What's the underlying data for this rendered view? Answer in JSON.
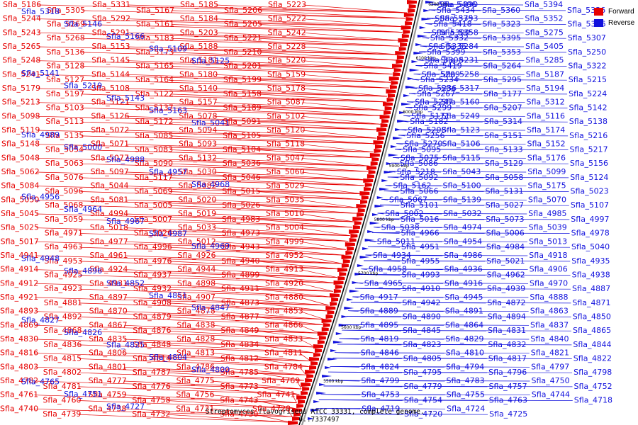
{
  "colors": {
    "forward": "#e60000",
    "reverse": "#1111dd",
    "backbone": "#000000"
  },
  "legend": [
    {
      "label": "Forward",
      "color": "#e60000"
    },
    {
      "label": "Reverse",
      "color": "#1111dd"
    }
  ],
  "caption": "Streptomyces flavogriseus ATCC 33331, complete genome. - 0..7337497",
  "ticks": [
    "5500 kbp",
    "5600 kbp",
    "5700 kbp",
    "5800 kbp",
    "5900 kbp",
    "6000 kbp",
    "6100 kbp",
    "6200 kbp"
  ],
  "forward_labels": [
    "Sfla_5186",
    "Sfla_5305",
    "Sfla_5331",
    "Sfla_5167",
    "Sfla_5185",
    "Sfla_5206",
    "Sfla_5223",
    "Sfla_5244",
    "Sfla_5269",
    "Sfla_5292",
    "Sfla_5161",
    "Sfla_5184",
    "Sfla_5205",
    "Sfla_5222",
    "Sfla_5243",
    "Sfla_5268",
    "Sfla_5291",
    "Sfla_5183",
    "Sfla_5203",
    "Sfla_5221",
    "Sfla_5242",
    "Sfla_5265",
    "Sfla_5136",
    "Sfla_5153",
    "Sfla_5173",
    "Sfla_5188",
    "Sfla_5210",
    "Sfla_5228",
    "Sfla_5248",
    "Sfla_5128",
    "Sfla_5145",
    "Sfla_5165",
    "Sfla_5181",
    "Sfla_5201",
    "Sfla_5220",
    "Sfla_5241",
    "Sfla_5127",
    "Sfla_5144",
    "Sfla_5164",
    "Sfla_5180",
    "Sfla_5199",
    "Sfla_5159",
    "Sfla_5179",
    "Sfla_5197",
    "Sfla_5108",
    "Sfla_5122",
    "Sfla_5140",
    "Sfla_5158",
    "Sfla_5178",
    "Sfla_5213",
    "Sfla_5103",
    "Sfla_5121",
    "Sfla_5137",
    "Sfla_5157",
    "Sfla_5189",
    "Sfla_5087",
    "Sfla_5098",
    "Sfla_5113",
    "Sfla_5126",
    "Sfla_5172",
    "Sfla_5078",
    "Sfla_5091",
    "Sfla_5102",
    "Sfla_5119",
    "Sfla_5135",
    "Sfla_5072",
    "Sfla_5085",
    "Sfla_5094",
    "Sfla_5105",
    "Sfla_5120",
    "Sfla_5148",
    "Sfla_5054",
    "Sfla_5071",
    "Sfla_5083",
    "Sfla_5093",
    "Sfla_5104",
    "Sfla_5118",
    "Sfla_5048",
    "Sfla_5063",
    "Sfla_5077",
    "Sfla_5090",
    "Sfla_5132",
    "Sfla_5036",
    "Sfla_5047",
    "Sfla_5062",
    "Sfla_5076",
    "Sfla_5097",
    "Sfla_5117",
    "Sfla_5030",
    "Sfla_5046",
    "Sfla_5060",
    "Sfla_5084",
    "Sfla_5096",
    "Sfla_5044",
    "Sfla_5069",
    "Sfla_5082",
    "Sfla_5015",
    "Sfla_5029",
    "Sfla_5050",
    "Sfla_5068",
    "Sfla_5081",
    "Sfla_5005",
    "Sfla_5020",
    "Sfla_5026",
    "Sfla_5035",
    "Sfla_5045",
    "Sfla_5059",
    "Sfla_4994",
    "Sfla_5007",
    "Sfla_5019",
    "Sfla_4983",
    "Sfla_5010",
    "Sfla_5025",
    "Sfla_4971",
    "Sfla_5018",
    "Sfla_5026",
    "Sfla_5033",
    "Sfla_4973",
    "Sfla_5004",
    "Sfla_5017",
    "Sfla_4963",
    "Sfla_4977",
    "Sfla_4996",
    "Sfla_5012",
    "Sfla_4943",
    "Sfla_4999",
    "Sfla_4941",
    "Sfla_4953",
    "Sfla_4961",
    "Sfla_4976",
    "Sfla_4926",
    "Sfla_4940",
    "Sfla_4952",
    "Sfla_4914",
    "Sfla_4925",
    "Sfla_4924",
    "Sfla_4937",
    "Sfla_4944",
    "Sfla_4899",
    "Sfla_4913",
    "Sfla_4912",
    "Sfla_4923",
    "Sfla_4931",
    "Sfla_4932",
    "Sfla_4898",
    "Sfla_4911",
    "Sfla_4920",
    "Sfla_4921",
    "Sfla_4881",
    "Sfla_4897",
    "Sfla_4908",
    "Sfla_4907",
    "Sfla_4873",
    "Sfla_4880",
    "Sfla_4893",
    "Sfla_4892",
    "Sfla_4870",
    "Sfla_4879",
    "Sfla_4878",
    "Sfla_4877",
    "Sfla_4853",
    "Sfla_4869",
    "Sfla_4868",
    "Sfla_4867",
    "Sfla_4876",
    "Sfla_4838",
    "Sfla_4849",
    "Sfla_4866",
    "Sfla_4830",
    "Sfla_4836",
    "Sfla_4835",
    "Sfla_4848",
    "Sfla_4828",
    "Sfla_4834",
    "Sfla_4833",
    "Sfla_4816",
    "Sfla_4815",
    "Sfla_4806",
    "Sfla_4814",
    "Sfla_4813",
    "Sfla_4812",
    "Sfla_4811",
    "Sfla_4803",
    "Sfla_4802",
    "Sfla_4801",
    "Sfla_4787",
    "Sfla_4786",
    "Sfla_4785",
    "Sfla_4784",
    "Sfla_4782",
    "Sfla_4781",
    "Sfla_4777",
    "Sfla_4776",
    "Sfla_4775",
    "Sfla_4773",
    "Sfla_4769",
    "Sfla_4761",
    "Sfla_4760",
    "Sfla_4759",
    "Sfla_4758",
    "Sfla_4756",
    "Sfla_4743",
    "Sfla_4741",
    "Sfla_4740",
    "Sfla_4739",
    "Sfla_4738",
    "Sfla_4732",
    "Sfla_4731",
    "Sfla_4730",
    "Sfla_4728"
  ],
  "forward_blue_labels": [
    "Sfla_5318",
    "Sfla_5146",
    "Sfla_5166",
    "Sfla_5109",
    "Sfla_5125",
    "Sfla_5141",
    "Sfla_5219",
    "Sfla_5143",
    "Sfla_5163",
    "Sfla_5041",
    "Sfla_4989",
    "Sfla_5000",
    "Sfla_4988",
    "Sfla_4957",
    "Sfla_4968",
    "Sfla_4956",
    "Sfla_4964",
    "Sfla_4967",
    "Sfla_4987",
    "Sfla_4969",
    "Sfla_4948",
    "Sfla_4896",
    "Sfla_4852",
    "Sfla_4851",
    "Sfla_4847",
    "Sfla_4827",
    "Sfla_4826",
    "Sfla_4825",
    "Sfla_4804",
    "Sfla_4800",
    "Sfla_4765",
    "Sfla_4751",
    "Sfla_4727"
  ],
  "reverse_labels": [
    "Sfla_5406",
    "Sfla_5434",
    "Sfla_5390",
    "Sfla_5360",
    "Sfla_5394",
    "Sfla_5336",
    "Sfla_5375",
    "Sfla_5418",
    "Sfla_5393",
    "Sfla_5323",
    "Sfla_5352",
    "Sfla_5396",
    "Sfla_5300",
    "Sfla_5332",
    "Sfla_5358",
    "Sfla_5395",
    "Sfla_5275",
    "Sfla_5307",
    "Sfla_5335",
    "Sfla_5399",
    "Sfla_5284",
    "Sfla_5353",
    "Sfla_5405",
    "Sfla_5250",
    "Sfla_5308",
    "Sfla_5419",
    "Sfla_5231",
    "Sfla_5264",
    "Sfla_5285",
    "Sfla_5322",
    "Sfla_5209",
    "Sfla_5234",
    "Sfla_5258",
    "Sfla_5295",
    "Sfla_5187",
    "Sfla_5215",
    "Sfla_5236",
    "Sfla_5267",
    "Sfla_5317",
    "Sfla_5177",
    "Sfla_5194",
    "Sfla_5224",
    "Sfla_5247",
    "Sfla_5299",
    "Sfla_5160",
    "Sfla_5207",
    "Sfla_5312",
    "Sfla_5142",
    "Sfla_5171",
    "Sfla_5182",
    "Sfla_5249",
    "Sfla_5314",
    "Sfla_5116",
    "Sfla_5138",
    "Sfla_5208",
    "Sfla_5256",
    "Sfla_5123",
    "Sfla_5151",
    "Sfla_5174",
    "Sfla_5216",
    "Sfla_5270",
    "Sfla_5095",
    "Sfla_5106",
    "Sfla_5133",
    "Sfla_5152",
    "Sfla_5217",
    "Sfla_5075",
    "Sfla_5086",
    "Sfla_5115",
    "Sfla_5129",
    "Sfla_5176",
    "Sfla_5156",
    "Sfla_5218",
    "Sfla_5092",
    "Sfla_5043",
    "Sfla_5058",
    "Sfla_5099",
    "Sfla_5124",
    "Sfla_5162",
    "Sfla_5066",
    "Sfla_5100",
    "Sfla_5131",
    "Sfla_5175",
    "Sfla_5023",
    "Sfla_5067",
    "Sfla_5101",
    "Sfla_5139",
    "Sfla_5027",
    "Sfla_5070",
    "Sfla_5107",
    "Sfla_5002",
    "Sfla_5016",
    "Sfla_5032",
    "Sfla_5073",
    "Sfla_4985",
    "Sfla_4997",
    "Sfla_5038",
    "Sfla_4966",
    "Sfla_4974",
    "Sfla_5006",
    "Sfla_5039",
    "Sfla_4978",
    "Sfla_5011",
    "Sfla_4951",
    "Sfla_4954",
    "Sfla_4984",
    "Sfla_5013",
    "Sfla_5040",
    "Sfla_4934",
    "Sfla_4955",
    "Sfla_4986",
    "Sfla_5021",
    "Sfla_4918",
    "Sfla_4935",
    "Sfla_4958",
    "Sfla_4993",
    "Sfla_4936",
    "Sfla_4962",
    "Sfla_4906",
    "Sfla_4938",
    "Sfla_4965",
    "Sfla_4910",
    "Sfla_4916",
    "Sfla_4939",
    "Sfla_4970",
    "Sfla_4887",
    "Sfla_4917",
    "Sfla_4942",
    "Sfla_4945",
    "Sfla_4872",
    "Sfla_4888",
    "Sfla_4871",
    "Sfla_4889",
    "Sfla_4890",
    "Sfla_4891",
    "Sfla_4894",
    "Sfla_4863",
    "Sfla_4850",
    "Sfla_4895",
    "Sfla_4845",
    "Sfla_4864",
    "Sfla_4831",
    "Sfla_4837",
    "Sfla_4865",
    "Sfla_4819",
    "Sfla_4823",
    "Sfla_4829",
    "Sfla_4832",
    "Sfla_4840",
    "Sfla_4844",
    "Sfla_4846",
    "Sfla_4805",
    "Sfla_4810",
    "Sfla_4817",
    "Sfla_4821",
    "Sfla_4822",
    "Sfla_4824",
    "Sfla_4795",
    "Sfla_4794",
    "Sfla_4796",
    "Sfla_4797",
    "Sfla_4798",
    "Sfla_4799",
    "Sfla_4779",
    "Sfla_4783",
    "Sfla_4757",
    "Sfla_4750",
    "Sfla_4752",
    "Sfla_4753",
    "Sfla_4754",
    "Sfla_4755",
    "Sfla_4763",
    "Sfla_4744",
    "Sfla_4718",
    "Sfla_4719",
    "Sfla_4720",
    "Sfla_4724",
    "Sfla_4725"
  ]
}
